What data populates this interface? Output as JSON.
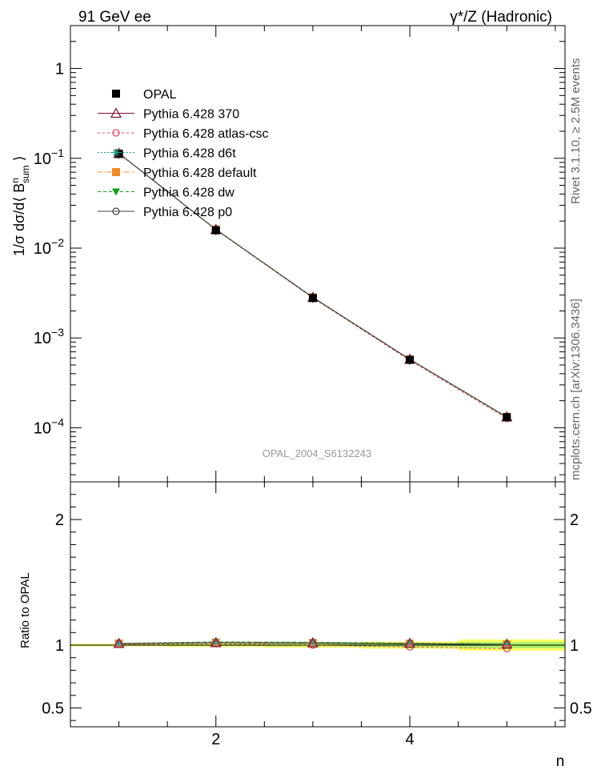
{
  "header": {
    "left_title": "91 GeV ee",
    "right_title": "γ*/Z (Hadronic)"
  },
  "side_labels": {
    "rivet": "Rivet 3.1.10, ≥ 2.5M events",
    "mcplots": "mcplots.cern.ch [arXiv:1306.3436]"
  },
  "watermark": "OPAL_2004_S6132243",
  "chart_data": [
    {
      "type": "line",
      "panel": "main",
      "ylabel": "1/σ dσ/d⟨ B^n_sum ⟩",
      "yscale": "log",
      "xlim": [
        0.5,
        5.6
      ],
      "ylim": [
        2.5e-05,
        3
      ],
      "yticks": [
        {
          "value": 1,
          "base": "1",
          "exp": ""
        },
        {
          "value": 0.1,
          "base": "10",
          "exp": "−1"
        },
        {
          "value": 0.01,
          "base": "10",
          "exp": "−2"
        },
        {
          "value": 0.001,
          "base": "10",
          "exp": "−3"
        },
        {
          "value": 0.0001,
          "base": "10",
          "exp": "−4"
        }
      ],
      "x": [
        1,
        2,
        3,
        4,
        5
      ],
      "series": [
        {
          "name": "OPAL",
          "color": "#000000",
          "marker": "square-filled",
          "dash": "none",
          "values": [
            0.112,
            0.0158,
            0.00278,
            0.00057,
            0.000131
          ]
        },
        {
          "name": "Pythia 6.428 370",
          "color": "#7a1030",
          "marker": "triangle-open",
          "dash": "solid",
          "values": [
            0.1135,
            0.0161,
            0.00283,
            0.000578,
            0.000132
          ]
        },
        {
          "name": "Pythia 6.428 atlas-csc",
          "color": "#e8415f",
          "marker": "circle-open",
          "dash": "3,3",
          "values": [
            0.1128,
            0.016,
            0.00278,
            0.000562,
            0.000127
          ]
        },
        {
          "name": "Pythia 6.428 d6t",
          "color": "#1aa39a",
          "marker": "star",
          "dash": "2,2",
          "values": [
            0.1135,
            0.0162,
            0.00284,
            0.000578,
            0.000132
          ]
        },
        {
          "name": "Pythia 6.428 default",
          "color": "#f28c28",
          "marker": "square-filled",
          "dash": "6,2,1,2",
          "values": [
            0.1135,
            0.0161,
            0.00283,
            0.000577,
            0.000132
          ]
        },
        {
          "name": "Pythia 6.428 dw",
          "color": "#13a313",
          "marker": "triangle-down-filled",
          "dash": "4,3",
          "values": [
            0.1136,
            0.0162,
            0.00284,
            0.000579,
            0.000132
          ]
        },
        {
          "name": "Pythia 6.428 p0",
          "color": "#404040",
          "marker": "circle-open",
          "dash": "solid",
          "values": [
            0.1133,
            0.0161,
            0.00282,
            0.000576,
            0.000131
          ]
        }
      ]
    },
    {
      "type": "line",
      "panel": "ratio",
      "ylabel": "Ratio to OPAL",
      "xlabel": "n",
      "xlim": [
        0.5,
        5.6
      ],
      "ylim": [
        0.35,
        2.3
      ],
      "yticks": [
        {
          "value": 2,
          "label": "2"
        },
        {
          "value": 1,
          "label": "1"
        },
        {
          "value": 0.5,
          "label": "0.5"
        }
      ],
      "xticks": [
        {
          "value": 2,
          "label": "2"
        },
        {
          "value": 4,
          "label": "4"
        }
      ],
      "x": [
        1,
        2,
        3,
        4,
        5
      ],
      "band": {
        "stat_lo": [
          0.995,
          0.993,
          0.99,
          0.985,
          0.975
        ],
        "stat_hi": [
          1.005,
          1.007,
          1.01,
          1.015,
          1.025
        ],
        "sys_lo": [
          0.99,
          0.985,
          0.98,
          0.972,
          0.955
        ],
        "sys_hi": [
          1.01,
          1.015,
          1.02,
          1.028,
          1.045
        ]
      },
      "series": [
        {
          "name": "Pythia 6.428 370",
          "values": [
            1.013,
            1.02,
            1.018,
            1.014,
            1.008
          ]
        },
        {
          "name": "Pythia 6.428 atlas-csc",
          "values": [
            1.007,
            1.012,
            1.0,
            0.985,
            0.972
          ]
        },
        {
          "name": "Pythia 6.428 d6t",
          "values": [
            1.013,
            1.025,
            1.022,
            1.014,
            1.008
          ]
        },
        {
          "name": "Pythia 6.428 default",
          "values": [
            1.013,
            1.02,
            1.018,
            1.012,
            1.006
          ]
        },
        {
          "name": "Pythia 6.428 dw",
          "values": [
            1.014,
            1.026,
            1.023,
            1.016,
            1.009
          ]
        },
        {
          "name": "Pythia 6.428 p0",
          "values": [
            1.012,
            1.018,
            1.014,
            1.01,
            1.002
          ]
        }
      ]
    }
  ]
}
